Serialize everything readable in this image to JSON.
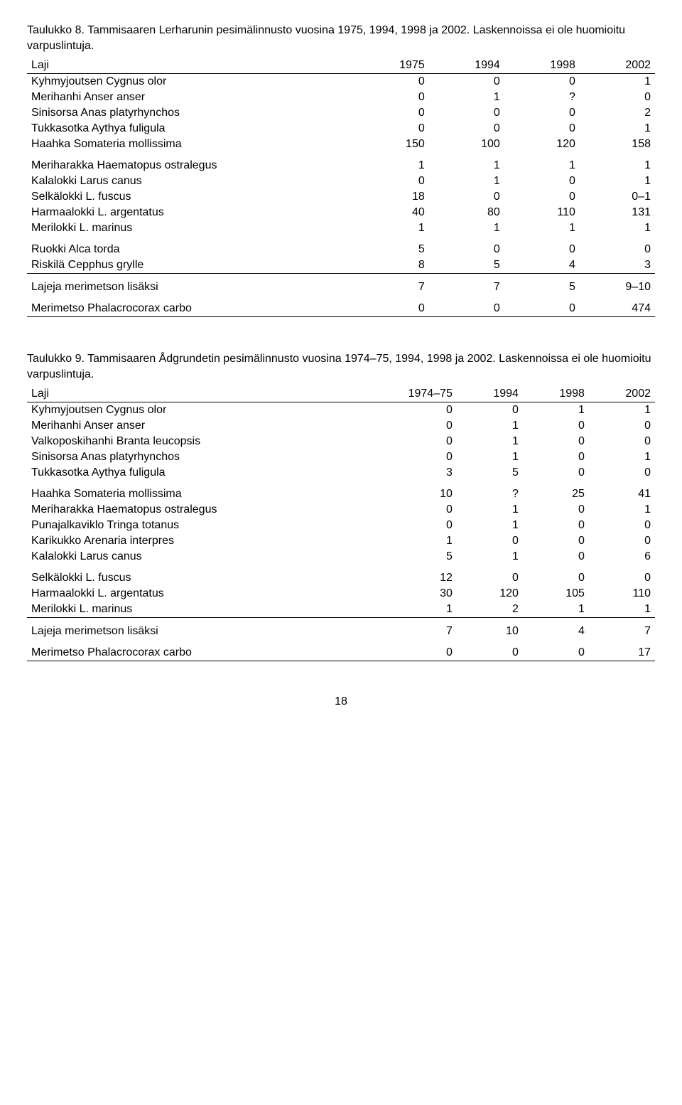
{
  "table8": {
    "caption": "Taulukko 8. Tammisaaren Lerharunin pesimälinnusto vuosina 1975, 1994, 1998 ja 2002. Laskennoissa ei ole huomioitu varpuslintuja.",
    "headers": [
      "Laji",
      "1975",
      "1994",
      "1998",
      "2002"
    ],
    "groups": [
      [
        {
          "label": "Kyhmyjoutsen Cygnus olor",
          "values": [
            "0",
            "0",
            "0",
            "1"
          ]
        },
        {
          "label": "Merihanhi Anser anser",
          "values": [
            "0",
            "1",
            "?",
            "0"
          ]
        },
        {
          "label": "Sinisorsa Anas platyrhynchos",
          "values": [
            "0",
            "0",
            "0",
            "2"
          ]
        },
        {
          "label": "Tukkasotka Aythya fuligula",
          "values": [
            "0",
            "0",
            "0",
            "1"
          ]
        },
        {
          "label": "Haahka Somateria mollissima",
          "values": [
            "150",
            "100",
            "120",
            "158"
          ]
        }
      ],
      [
        {
          "label": "Meriharakka Haematopus ostralegus",
          "values": [
            "1",
            "1",
            "1",
            "1"
          ]
        },
        {
          "label": "Kalalokki Larus canus",
          "values": [
            "0",
            "1",
            "0",
            "1"
          ]
        },
        {
          "label": "Selkälokki L. fuscus",
          "values": [
            "18",
            "0",
            "0",
            "0–1"
          ]
        },
        {
          "label": "Harmaalokki L. argentatus",
          "values": [
            "40",
            "80",
            "110",
            "131"
          ]
        },
        {
          "label": "Merilokki L. marinus",
          "values": [
            "1",
            "1",
            "1",
            "1"
          ]
        }
      ],
      [
        {
          "label": "Ruokki Alca torda",
          "values": [
            "5",
            "0",
            "0",
            "0"
          ]
        },
        {
          "label": "Riskilä Cepphus grylle",
          "values": [
            "8",
            "5",
            "4",
            "3"
          ]
        }
      ],
      [
        {
          "label": "Lajeja merimetson lisäksi",
          "values": [
            "7",
            "7",
            "5",
            "9–10"
          ]
        }
      ],
      [
        {
          "label": "Merimetso Phalacrocorax carbo",
          "values": [
            "0",
            "0",
            "0",
            "474"
          ]
        }
      ]
    ]
  },
  "table9": {
    "caption": "Taulukko 9. Tammisaaren Ådgrundetin pesimälinnusto vuosina 1974–75, 1994, 1998 ja 2002. Laskennoissa ei ole huomioitu varpuslintuja.",
    "headers": [
      "Laji",
      "1974–75",
      "1994",
      "1998",
      "2002"
    ],
    "groups": [
      [
        {
          "label": "Kyhmyjoutsen Cygnus olor",
          "values": [
            "0",
            "0",
            "1",
            "1"
          ]
        },
        {
          "label": "Merihanhi Anser anser",
          "values": [
            "0",
            "1",
            "0",
            "0"
          ]
        },
        {
          "label": "Valkoposkihanhi Branta leucopsis",
          "values": [
            "0",
            "1",
            "0",
            "0"
          ]
        },
        {
          "label": "Sinisorsa Anas platyrhynchos",
          "values": [
            "0",
            "1",
            "0",
            "1"
          ]
        },
        {
          "label": "Tukkasotka Aythya fuligula",
          "values": [
            "3",
            "5",
            "0",
            "0"
          ]
        }
      ],
      [
        {
          "label": "Haahka Somateria mollissima",
          "values": [
            "10",
            "?",
            "25",
            "41"
          ]
        },
        {
          "label": "Meriharakka Haematopus ostralegus",
          "values": [
            "0",
            "1",
            "0",
            "1"
          ]
        },
        {
          "label": "Punajalkaviklo Tringa totanus",
          "values": [
            "0",
            "1",
            "0",
            "0"
          ]
        },
        {
          "label": "Karikukko Arenaria interpres",
          "values": [
            "1",
            "0",
            "0",
            "0"
          ]
        },
        {
          "label": "Kalalokki Larus canus",
          "values": [
            "5",
            "1",
            "0",
            "6"
          ]
        }
      ],
      [
        {
          "label": "Selkälokki L. fuscus",
          "values": [
            "12",
            "0",
            "0",
            "0"
          ]
        },
        {
          "label": "Harmaalokki L. argentatus",
          "values": [
            "30",
            "120",
            "105",
            "110"
          ]
        },
        {
          "label": "Merilokki L. marinus",
          "values": [
            "1",
            "2",
            "1",
            "1"
          ]
        }
      ],
      [
        {
          "label": "Lajeja merimetson lisäksi",
          "values": [
            "7",
            "10",
            "4",
            "7"
          ]
        }
      ],
      [
        {
          "label": "Merimetso Phalacrocorax carbo",
          "values": [
            "0",
            "0",
            "0",
            "17"
          ]
        }
      ]
    ]
  },
  "page_number": "18"
}
